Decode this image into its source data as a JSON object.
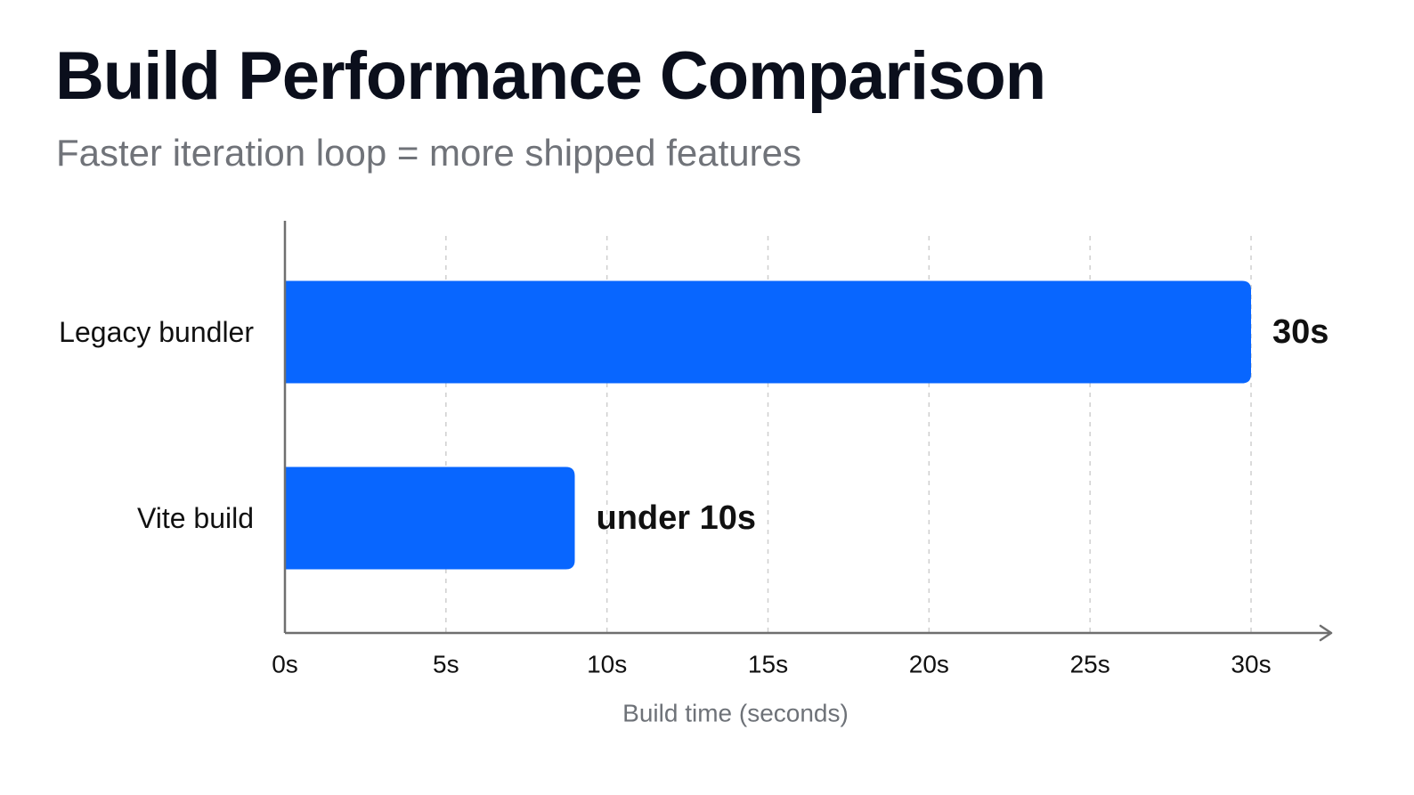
{
  "colors": {
    "bar": "#0866ff",
    "axis": "#6f6f6f",
    "grid": "#cfcfcf",
    "title": "#0b0f1c",
    "subtitle": "#707379"
  },
  "chart_data": {
    "type": "bar",
    "orientation": "horizontal",
    "title": "Build Performance Comparison",
    "subtitle": "Faster iteration loop = more shipped features",
    "categories": [
      "Legacy bundler",
      "Vite build"
    ],
    "values": [
      30,
      9
    ],
    "value_labels": [
      "30s",
      "under 10s"
    ],
    "xlabel": "Build time (seconds)",
    "ylabel": "",
    "xlim": [
      0,
      30
    ],
    "xticks": [
      0,
      5,
      10,
      15,
      20,
      25,
      30
    ],
    "xtick_labels": [
      "0s",
      "5s",
      "10s",
      "15s",
      "20s",
      "25s",
      "30s"
    ],
    "grid": true,
    "legend": "none"
  }
}
